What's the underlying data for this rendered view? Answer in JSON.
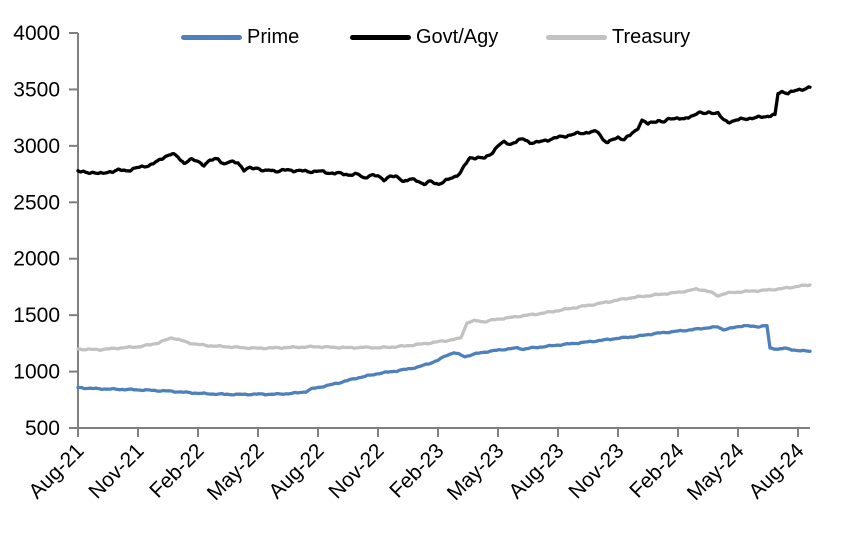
{
  "colors": {
    "background": "#FFFFFF",
    "axis": "#7F7F7F",
    "text": "#000000",
    "prime": "#4E81BC",
    "govt_agy": "#000000",
    "treasury": "#C2C2C2"
  },
  "legend": {
    "position": "top",
    "items": [
      "Prime",
      "Govt/Agy",
      "Treasury"
    ]
  },
  "chart_data": {
    "type": "line",
    "title": "",
    "xlabel": "",
    "ylabel": "",
    "grid": false,
    "ylim": [
      500,
      4000
    ],
    "y_ticks": [
      500,
      1000,
      1500,
      2000,
      2500,
      3000,
      3500,
      4000
    ],
    "x_tick_labels": [
      "Aug-21",
      "Nov-21",
      "Feb-22",
      "May-22",
      "Aug-22",
      "Nov-22",
      "Feb-23",
      "May-23",
      "Aug-23",
      "Nov-23",
      "Feb-24",
      "May-24",
      "Aug-24"
    ],
    "x_tick_months": [
      0,
      3,
      6,
      9,
      12,
      15,
      18,
      21,
      24,
      27,
      30,
      33,
      36
    ],
    "x_range_months": [
      0,
      36.6
    ],
    "series": [
      {
        "name": "Prime",
        "color": "#4E81BC",
        "points": [
          [
            0,
            858
          ],
          [
            0.5,
            852
          ],
          [
            1,
            848
          ],
          [
            1.5,
            845
          ],
          [
            2,
            843
          ],
          [
            2.5,
            841
          ],
          [
            3,
            838
          ],
          [
            3.5,
            835
          ],
          [
            4,
            831
          ],
          [
            4.5,
            827
          ],
          [
            5,
            821
          ],
          [
            5.5,
            814
          ],
          [
            6,
            808
          ],
          [
            6.5,
            803
          ],
          [
            7,
            800
          ],
          [
            7.5,
            798
          ],
          [
            8,
            797
          ],
          [
            8.5,
            798
          ],
          [
            9,
            800
          ],
          [
            9.5,
            799
          ],
          [
            10,
            800
          ],
          [
            10.5,
            804
          ],
          [
            11,
            812
          ],
          [
            11.4,
            822
          ],
          [
            11.7,
            848
          ],
          [
            12,
            858
          ],
          [
            12.5,
            878
          ],
          [
            13,
            898
          ],
          [
            13.5,
            922
          ],
          [
            14,
            945
          ],
          [
            14.5,
            963
          ],
          [
            15,
            982
          ],
          [
            15.5,
            995
          ],
          [
            16,
            1008
          ],
          [
            16.5,
            1023
          ],
          [
            17,
            1040
          ],
          [
            17.5,
            1068
          ],
          [
            18,
            1100
          ],
          [
            18.4,
            1142
          ],
          [
            18.8,
            1168
          ],
          [
            19.05,
            1152
          ],
          [
            19.35,
            1132
          ],
          [
            19.7,
            1150
          ],
          [
            20,
            1162
          ],
          [
            20.5,
            1178
          ],
          [
            21,
            1190
          ],
          [
            21.5,
            1200
          ],
          [
            22,
            1210
          ],
          [
            22.25,
            1198
          ],
          [
            22.6,
            1208
          ],
          [
            23,
            1215
          ],
          [
            23.5,
            1225
          ],
          [
            24,
            1235
          ],
          [
            24.5,
            1244
          ],
          [
            25,
            1253
          ],
          [
            25.5,
            1263
          ],
          [
            26,
            1273
          ],
          [
            26.5,
            1284
          ],
          [
            27,
            1295
          ],
          [
            27.5,
            1304
          ],
          [
            28,
            1313
          ],
          [
            28.5,
            1328
          ],
          [
            29,
            1340
          ],
          [
            29.5,
            1349
          ],
          [
            30,
            1358
          ],
          [
            30.5,
            1367
          ],
          [
            31,
            1378
          ],
          [
            31.5,
            1388
          ],
          [
            32,
            1396
          ],
          [
            32.25,
            1372
          ],
          [
            32.6,
            1382
          ],
          [
            33,
            1398
          ],
          [
            33.3,
            1408
          ],
          [
            33.7,
            1400
          ],
          [
            34,
            1398
          ],
          [
            34.2,
            1404
          ],
          [
            34.45,
            1407
          ],
          [
            34.6,
            1205
          ],
          [
            35,
            1200
          ],
          [
            35.3,
            1207
          ],
          [
            35.7,
            1193
          ],
          [
            36,
            1188
          ],
          [
            36.3,
            1182
          ],
          [
            36.6,
            1180
          ]
        ]
      },
      {
        "name": "Govt/Agy",
        "color": "#000000",
        "points": [
          [
            0,
            2780
          ],
          [
            0.4,
            2758
          ],
          [
            0.8,
            2768
          ],
          [
            1.2,
            2750
          ],
          [
            1.6,
            2772
          ],
          [
            2,
            2785
          ],
          [
            2.4,
            2778
          ],
          [
            2.8,
            2800
          ],
          [
            3.2,
            2812
          ],
          [
            3.6,
            2832
          ],
          [
            4,
            2862
          ],
          [
            4.4,
            2912
          ],
          [
            4.7,
            2930
          ],
          [
            5,
            2898
          ],
          [
            5.3,
            2848
          ],
          [
            5.6,
            2878
          ],
          [
            6,
            2862
          ],
          [
            6.3,
            2832
          ],
          [
            6.6,
            2868
          ],
          [
            7,
            2888
          ],
          [
            7.3,
            2838
          ],
          [
            7.6,
            2856
          ],
          [
            8,
            2856
          ],
          [
            8.3,
            2782
          ],
          [
            8.6,
            2802
          ],
          [
            9,
            2806
          ],
          [
            9.3,
            2772
          ],
          [
            9.6,
            2786
          ],
          [
            10,
            2776
          ],
          [
            10.5,
            2786
          ],
          [
            11,
            2780
          ],
          [
            11.5,
            2772
          ],
          [
            12,
            2776
          ],
          [
            12.5,
            2762
          ],
          [
            13,
            2756
          ],
          [
            13.5,
            2746
          ],
          [
            14,
            2746
          ],
          [
            14.3,
            2716
          ],
          [
            14.6,
            2740
          ],
          [
            15,
            2730
          ],
          [
            15.3,
            2702
          ],
          [
            15.6,
            2730
          ],
          [
            16,
            2720
          ],
          [
            16.3,
            2688
          ],
          [
            16.6,
            2702
          ],
          [
            17,
            2690
          ],
          [
            17.3,
            2662
          ],
          [
            17.6,
            2682
          ],
          [
            18,
            2662
          ],
          [
            18.4,
            2692
          ],
          [
            18.8,
            2722
          ],
          [
            19.1,
            2762
          ],
          [
            19.35,
            2830
          ],
          [
            19.6,
            2890
          ],
          [
            20,
            2900
          ],
          [
            20.35,
            2888
          ],
          [
            20.7,
            2938
          ],
          [
            21,
            3005
          ],
          [
            21.3,
            3030
          ],
          [
            21.6,
            3015
          ],
          [
            22,
            3048
          ],
          [
            22.3,
            3058
          ],
          [
            22.6,
            3030
          ],
          [
            23,
            3030
          ],
          [
            23.4,
            3050
          ],
          [
            23.7,
            3062
          ],
          [
            24,
            3075
          ],
          [
            24.5,
            3092
          ],
          [
            25,
            3110
          ],
          [
            25.5,
            3120
          ],
          [
            26,
            3125
          ],
          [
            26.25,
            3058
          ],
          [
            26.5,
            3030
          ],
          [
            27,
            3075
          ],
          [
            27.3,
            3060
          ],
          [
            27.6,
            3092
          ],
          [
            28,
            3152
          ],
          [
            28.2,
            3230
          ],
          [
            28.5,
            3192
          ],
          [
            28.8,
            3212
          ],
          [
            29,
            3228
          ],
          [
            29.3,
            3210
          ],
          [
            29.6,
            3240
          ],
          [
            30,
            3250
          ],
          [
            30.3,
            3232
          ],
          [
            30.6,
            3256
          ],
          [
            31,
            3298
          ],
          [
            31.3,
            3282
          ],
          [
            31.6,
            3300
          ],
          [
            32,
            3288
          ],
          [
            32.25,
            3230
          ],
          [
            32.5,
            3212
          ],
          [
            33,
            3230
          ],
          [
            33.5,
            3244
          ],
          [
            34,
            3250
          ],
          [
            34.4,
            3262
          ],
          [
            34.85,
            3276
          ],
          [
            35,
            3462
          ],
          [
            35.2,
            3480
          ],
          [
            35.5,
            3470
          ],
          [
            35.8,
            3482
          ],
          [
            36,
            3494
          ],
          [
            36.3,
            3506
          ],
          [
            36.6,
            3520
          ]
        ]
      },
      {
        "name": "Treasury",
        "color": "#C2C2C2",
        "points": [
          [
            0,
            1200
          ],
          [
            0.5,
            1196
          ],
          [
            1,
            1194
          ],
          [
            1.5,
            1200
          ],
          [
            2,
            1208
          ],
          [
            2.5,
            1214
          ],
          [
            3,
            1220
          ],
          [
            3.5,
            1234
          ],
          [
            4,
            1254
          ],
          [
            4.4,
            1280
          ],
          [
            4.7,
            1300
          ],
          [
            5,
            1286
          ],
          [
            5.5,
            1256
          ],
          [
            6,
            1240
          ],
          [
            6.5,
            1230
          ],
          [
            7,
            1224
          ],
          [
            7.5,
            1220
          ],
          [
            8,
            1214
          ],
          [
            8.5,
            1210
          ],
          [
            9,
            1206
          ],
          [
            9.5,
            1209
          ],
          [
            10,
            1210
          ],
          [
            10.5,
            1214
          ],
          [
            11,
            1216
          ],
          [
            11.5,
            1219
          ],
          [
            12,
            1220
          ],
          [
            12.5,
            1216
          ],
          [
            13,
            1214
          ],
          [
            13.5,
            1211
          ],
          [
            14,
            1214
          ],
          [
            14.5,
            1214
          ],
          [
            15,
            1211
          ],
          [
            15.5,
            1215
          ],
          [
            16,
            1221
          ],
          [
            16.5,
            1230
          ],
          [
            17,
            1240
          ],
          [
            17.5,
            1251
          ],
          [
            18,
            1264
          ],
          [
            18.5,
            1276
          ],
          [
            19,
            1290
          ],
          [
            19.15,
            1300
          ],
          [
            19.45,
            1432
          ],
          [
            19.7,
            1446
          ],
          [
            20,
            1450
          ],
          [
            20.3,
            1441
          ],
          [
            20.7,
            1456
          ],
          [
            21,
            1465
          ],
          [
            21.5,
            1476
          ],
          [
            22,
            1489
          ],
          [
            22.5,
            1500
          ],
          [
            23,
            1511
          ],
          [
            23.5,
            1525
          ],
          [
            24,
            1540
          ],
          [
            24.5,
            1556
          ],
          [
            25,
            1571
          ],
          [
            25.5,
            1586
          ],
          [
            26,
            1601
          ],
          [
            26.5,
            1617
          ],
          [
            27,
            1634
          ],
          [
            27.5,
            1650
          ],
          [
            28,
            1661
          ],
          [
            28.5,
            1672
          ],
          [
            29,
            1682
          ],
          [
            29.5,
            1692
          ],
          [
            30,
            1702
          ],
          [
            30.5,
            1716
          ],
          [
            30.9,
            1730
          ],
          [
            31.3,
            1722
          ],
          [
            31.7,
            1698
          ],
          [
            32,
            1672
          ],
          [
            32.35,
            1692
          ],
          [
            32.7,
            1700
          ],
          [
            33,
            1705
          ],
          [
            33.5,
            1711
          ],
          [
            34,
            1716
          ],
          [
            34.5,
            1723
          ],
          [
            35,
            1731
          ],
          [
            35.5,
            1742
          ],
          [
            36,
            1756
          ],
          [
            36.6,
            1768
          ]
        ]
      }
    ]
  }
}
